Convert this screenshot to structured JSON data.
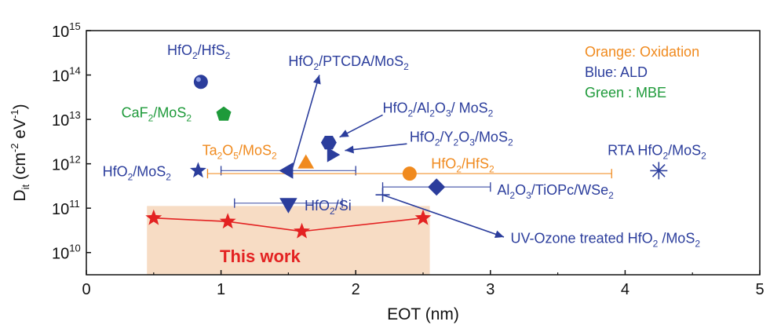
{
  "chart_data": {
    "type": "scatter",
    "xlabel": "EOT (nm)",
    "ylabel": "D_it (cm^-2 eV^-1)",
    "ylabel_parts": {
      "base": "D",
      "sub": "it",
      "unit_open": " (cm",
      "exp1": "-2",
      "mid": " eV",
      "exp2": "-1",
      "close": ")"
    },
    "xlim": [
      0,
      5
    ],
    "ylim_log10": [
      9.5,
      15
    ],
    "log_y": true,
    "x_ticks": [
      {
        "value": 0,
        "label": "0"
      },
      {
        "value": 1,
        "label": "1"
      },
      {
        "value": 2,
        "label": "2"
      },
      {
        "value": 3,
        "label": "3"
      },
      {
        "value": 4,
        "label": "4"
      },
      {
        "value": 5,
        "label": "5"
      }
    ],
    "y_ticks": [
      {
        "exp": 10,
        "base": "10",
        "sup": "10"
      },
      {
        "exp": 11,
        "base": "10",
        "sup": "11"
      },
      {
        "exp": 12,
        "base": "10",
        "sup": "12"
      },
      {
        "exp": 13,
        "base": "10",
        "sup": "13"
      },
      {
        "exp": 14,
        "base": "10",
        "sup": "14"
      },
      {
        "exp": 15,
        "base": "10",
        "sup": "15"
      }
    ],
    "colors": {
      "oxidation": "#f08a1e",
      "ald": "#2b3d9c",
      "mbe": "#1e9a3a",
      "this_work": "#e32222",
      "highlight": "#f7dcc4"
    },
    "legend": [
      {
        "text": "Orange: Oxidation",
        "color": "#f08a1e"
      },
      {
        "text": "Blue: ALD",
        "color": "#2b3d9c"
      },
      {
        "text": "Green : MBE",
        "color": "#1e9a3a"
      }
    ],
    "highlight_region": {
      "x": [
        0.45,
        2.55
      ],
      "y_log10": [
        9.5,
        11.05
      ]
    },
    "this_work": {
      "label": "This work",
      "color": "#e32222",
      "marker": "star",
      "points": [
        {
          "x": 0.5,
          "y": 60000000000.0
        },
        {
          "x": 1.05,
          "y": 50000000000.0
        },
        {
          "x": 1.6,
          "y": 30000000000.0
        },
        {
          "x": 2.5,
          "y": 60000000000.0
        }
      ]
    },
    "points": [
      {
        "id": "hfo2-hfs2-ald",
        "x": 0.85,
        "y": 70000000000000.0,
        "marker": "sphere",
        "color": "#2b3d9c"
      },
      {
        "id": "caf2-mos2",
        "x": 1.02,
        "y": 13000000000000.0,
        "marker": "pentagon",
        "color": "#1e9a3a"
      },
      {
        "id": "hfo2-mos2",
        "x": 0.83,
        "y": 700000000000.0,
        "marker": "star",
        "color": "#2b3d9c"
      },
      {
        "id": "hfo2-ptcda-mos2",
        "x": 1.5,
        "y": 700000000000.0,
        "marker": "triangle-left",
        "color": "#2b3d9c",
        "xerr": [
          1.0,
          2.0
        ]
      },
      {
        "id": "ta2o5-mos2",
        "x": 1.63,
        "y": 1000000000000.0,
        "marker": "triangle-up",
        "color": "#f08a1e"
      },
      {
        "id": "hfo2-si",
        "x": 1.5,
        "y": 130000000000.0,
        "marker": "triangle-down",
        "color": "#2b3d9c",
        "xerr": [
          1.1,
          1.9
        ]
      },
      {
        "id": "hfo2-al2o3-mos2",
        "x": 1.8,
        "y": 3000000000000.0,
        "marker": "hexagon",
        "color": "#2b3d9c"
      },
      {
        "id": "hfo2-y2o3-mos2",
        "x": 1.82,
        "y": 1600000000000.0,
        "marker": "triangle-right",
        "color": "#2b3d9c"
      },
      {
        "id": "hfo2-hfs2-oxidation",
        "x": 2.4,
        "y": 600000000000.0,
        "marker": "circle",
        "color": "#f08a1e",
        "xerr": [
          0.9,
          3.9
        ]
      },
      {
        "id": "al2o3-tiopc-wse2",
        "x": 2.6,
        "y": 300000000000.0,
        "marker": "diamond",
        "color": "#2b3d9c",
        "xerr": [
          2.2,
          3.0
        ]
      },
      {
        "id": "uv-ozone-hfo2-mos2",
        "x": 2.2,
        "y": 200000000000.0,
        "marker": "plus",
        "color": "#2b3d9c"
      },
      {
        "id": "rta-hfo2-mos2",
        "x": 4.25,
        "y": 700000000000.0,
        "marker": "asterisk",
        "color": "#2b3d9c"
      }
    ],
    "labels": [
      {
        "id": "lbl-hfo2-hfs2-ald",
        "color": "#2b3d9c",
        "x": 0.6,
        "ylog": 14.45,
        "parts": [
          [
            "HfO"
          ],
          [
            "2",
            "sub"
          ],
          [
            "/HfS"
          ],
          [
            "2",
            "sub"
          ]
        ]
      },
      {
        "id": "lbl-hfo2-ptcda-mos2",
        "color": "#2b3d9c",
        "x": 1.5,
        "ylog": 14.2,
        "parts": [
          [
            "HfO"
          ],
          [
            "2",
            "sub"
          ],
          [
            "/PTCDA/MoS"
          ],
          [
            "2",
            "sub"
          ]
        ]
      },
      {
        "id": "lbl-caf2-mos2",
        "color": "#1e9a3a",
        "x": 0.26,
        "ylog": 13.05,
        "parts": [
          [
            "CaF"
          ],
          [
            "2",
            "sub"
          ],
          [
            "/MoS"
          ],
          [
            "2",
            "sub"
          ]
        ]
      },
      {
        "id": "lbl-hfo2-al2o3-mos2",
        "color": "#2b3d9c",
        "x": 2.2,
        "ylog": 13.15,
        "parts": [
          [
            "HfO"
          ],
          [
            "2",
            "sub"
          ],
          [
            "/Al"
          ],
          [
            "2",
            "sub"
          ],
          [
            "O"
          ],
          [
            "3",
            "sub"
          ],
          [
            "/ MoS"
          ],
          [
            "2",
            "sub"
          ]
        ]
      },
      {
        "id": "lbl-hfo2-y2o3-mos2",
        "color": "#2b3d9c",
        "x": 2.4,
        "ylog": 12.5,
        "parts": [
          [
            "HfO"
          ],
          [
            "2",
            "sub"
          ],
          [
            "/Y"
          ],
          [
            "2",
            "sub"
          ],
          [
            "O"
          ],
          [
            "3",
            "sub"
          ],
          [
            "/MoS"
          ],
          [
            "2",
            "sub"
          ]
        ]
      },
      {
        "id": "lbl-ta2o5-mos2",
        "color": "#f08a1e",
        "x": 0.86,
        "ylog": 12.2,
        "parts": [
          [
            "Ta"
          ],
          [
            "2",
            "sub"
          ],
          [
            "O"
          ],
          [
            "5",
            "sub"
          ],
          [
            "/MoS"
          ],
          [
            "2",
            "sub"
          ]
        ]
      },
      {
        "id": "lbl-hfo2-mos2",
        "color": "#2b3d9c",
        "x": 0.12,
        "ylog": 11.72,
        "parts": [
          [
            "HfO"
          ],
          [
            "2",
            "sub"
          ],
          [
            "/MoS"
          ],
          [
            "2",
            "sub"
          ]
        ]
      },
      {
        "id": "lbl-hfo2-hfs2-oxidation",
        "color": "#f08a1e",
        "x": 2.56,
        "ylog": 11.9,
        "parts": [
          [
            "HfO"
          ],
          [
            "2",
            "sub"
          ],
          [
            "/HfS"
          ],
          [
            "2",
            "sub"
          ]
        ]
      },
      {
        "id": "lbl-rta-hfo2-mos2",
        "color": "#2b3d9c",
        "x": 3.87,
        "ylog": 12.2,
        "parts": [
          [
            "RTA HfO"
          ],
          [
            "2",
            "sub"
          ],
          [
            "/MoS"
          ],
          [
            "2",
            "sub"
          ]
        ]
      },
      {
        "id": "lbl-al2o3-tiopc-wse2",
        "color": "#2b3d9c",
        "x": 3.05,
        "ylog": 11.3,
        "parts": [
          [
            "Al"
          ],
          [
            "2",
            "sub"
          ],
          [
            "O"
          ],
          [
            "3",
            "sub"
          ],
          [
            "/TiOPc/WSe"
          ],
          [
            "2",
            "sub"
          ]
        ]
      },
      {
        "id": "lbl-hfo2-si",
        "color": "#2b3d9c",
        "x": 1.62,
        "ylog": 10.95,
        "parts": [
          [
            "HfO"
          ],
          [
            "2",
            "sub"
          ],
          [
            "/Si"
          ]
        ]
      },
      {
        "id": "lbl-uv-ozone",
        "color": "#2b3d9c",
        "x": 3.15,
        "ylog": 10.22,
        "parts": [
          [
            "UV-Ozone treated HfO"
          ],
          [
            "2",
            "sub"
          ],
          [
            " /MoS"
          ],
          [
            "2",
            "sub"
          ]
        ]
      }
    ],
    "arrows": [
      {
        "id": "arrow-ptcda",
        "from": [
          1.53,
          11.9
        ],
        "to": [
          1.73,
          14.0
        ]
      },
      {
        "id": "arrow-al2o3",
        "from": [
          2.2,
          13.1
        ],
        "to": [
          1.88,
          12.6
        ]
      },
      {
        "id": "arrow-y2o3",
        "from": [
          2.38,
          12.45
        ],
        "to": [
          1.92,
          12.3
        ]
      },
      {
        "id": "arrow-uv-ozone",
        "from": [
          2.2,
          11.3
        ],
        "to": [
          3.1,
          10.35
        ]
      }
    ]
  }
}
